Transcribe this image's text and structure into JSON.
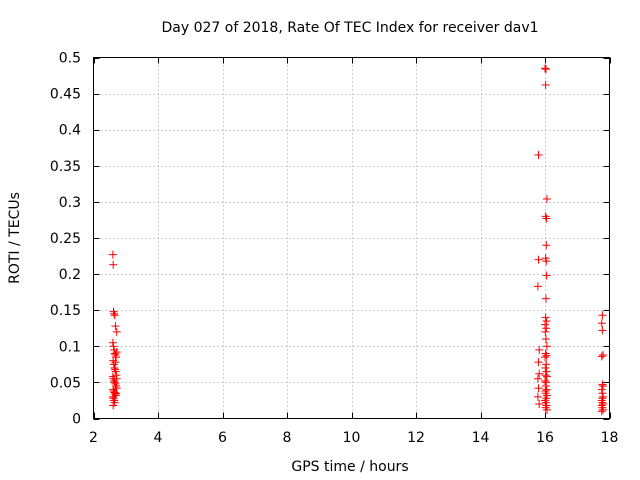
{
  "chart_data": {
    "type": "scatter",
    "title": "Day 027 of 2018, Rate Of TEC Index for receiver dav1",
    "xlabel": "GPS time / hours",
    "ylabel": "ROTI / TECUs",
    "xlim": [
      2,
      18
    ],
    "ylim": [
      0,
      0.5
    ],
    "xticks": [
      2,
      4,
      6,
      8,
      10,
      12,
      14,
      16,
      18
    ],
    "xtick_labels": [
      "2",
      "4",
      "6",
      "8",
      "10",
      "12",
      "14",
      "16",
      "18"
    ],
    "yticks": [
      0,
      0.05,
      0.1,
      0.15,
      0.2,
      0.25,
      0.3,
      0.35,
      0.4,
      0.45,
      0.5
    ],
    "ytick_labels": [
      "0",
      "0.05",
      "0.1",
      "0.15",
      "0.2",
      "0.25",
      "0.3",
      "0.35",
      "0.4",
      "0.45",
      "0.5"
    ],
    "grid": true,
    "marker": "plus",
    "color": "#ff0000",
    "series": [
      {
        "name": "dav1",
        "points": [
          [
            2.6,
            0.227
          ],
          [
            2.61,
            0.213
          ],
          [
            2.62,
            0.148
          ],
          [
            2.64,
            0.145
          ],
          [
            2.66,
            0.143
          ],
          [
            2.68,
            0.128
          ],
          [
            2.72,
            0.12
          ],
          [
            2.6,
            0.105
          ],
          [
            2.62,
            0.1
          ],
          [
            2.64,
            0.095
          ],
          [
            2.66,
            0.09
          ],
          [
            2.68,
            0.088
          ],
          [
            2.7,
            0.085
          ],
          [
            2.72,
            0.092
          ],
          [
            2.61,
            0.08
          ],
          [
            2.63,
            0.075
          ],
          [
            2.65,
            0.07
          ],
          [
            2.67,
            0.068
          ],
          [
            2.69,
            0.065
          ],
          [
            2.71,
            0.06
          ],
          [
            2.6,
            0.058
          ],
          [
            2.62,
            0.055
          ],
          [
            2.64,
            0.052
          ],
          [
            2.66,
            0.05
          ],
          [
            2.68,
            0.048
          ],
          [
            2.7,
            0.045
          ],
          [
            2.72,
            0.042
          ],
          [
            2.61,
            0.04
          ],
          [
            2.63,
            0.038
          ],
          [
            2.65,
            0.036
          ],
          [
            2.67,
            0.034
          ],
          [
            2.69,
            0.032
          ],
          [
            2.6,
            0.03
          ],
          [
            2.62,
            0.028
          ],
          [
            2.64,
            0.025
          ],
          [
            2.66,
            0.022
          ],
          [
            2.61,
            0.018
          ],
          [
            2.7,
            0.035
          ],
          [
            2.72,
            0.055
          ],
          [
            2.68,
            0.078
          ],
          [
            15.8,
            0.365
          ],
          [
            16.0,
            0.485
          ],
          [
            16.03,
            0.484
          ],
          [
            16.02,
            0.462
          ],
          [
            16.06,
            0.304
          ],
          [
            16.02,
            0.28
          ],
          [
            16.05,
            0.277
          ],
          [
            16.04,
            0.24
          ],
          [
            16.02,
            0.222
          ],
          [
            16.04,
            0.218
          ],
          [
            15.8,
            0.22
          ],
          [
            16.05,
            0.198
          ],
          [
            15.78,
            0.183
          ],
          [
            16.03,
            0.166
          ],
          [
            16.02,
            0.14
          ],
          [
            16.05,
            0.135
          ],
          [
            16.0,
            0.13
          ],
          [
            16.04,
            0.125
          ],
          [
            16.01,
            0.12
          ],
          [
            16.03,
            0.11
          ],
          [
            16.06,
            0.1
          ],
          [
            15.82,
            0.095
          ],
          [
            16.02,
            0.09
          ],
          [
            16.05,
            0.087
          ],
          [
            16.0,
            0.085
          ],
          [
            15.8,
            0.078
          ],
          [
            16.04,
            0.075
          ],
          [
            16.01,
            0.07
          ],
          [
            16.05,
            0.065
          ],
          [
            15.82,
            0.062
          ],
          [
            16.02,
            0.06
          ],
          [
            16.06,
            0.058
          ],
          [
            15.78,
            0.055
          ],
          [
            16.0,
            0.052
          ],
          [
            16.04,
            0.05
          ],
          [
            16.03,
            0.045
          ],
          [
            15.8,
            0.042
          ],
          [
            16.05,
            0.04
          ],
          [
            16.01,
            0.038
          ],
          [
            16.02,
            0.035
          ],
          [
            16.06,
            0.032
          ],
          [
            15.78,
            0.03
          ],
          [
            16.04,
            0.028
          ],
          [
            16.0,
            0.025
          ],
          [
            16.03,
            0.022
          ],
          [
            15.82,
            0.02
          ],
          [
            16.05,
            0.018
          ],
          [
            16.02,
            0.015
          ],
          [
            16.06,
            0.012
          ],
          [
            17.78,
            0.143
          ],
          [
            17.76,
            0.132
          ],
          [
            17.78,
            0.122
          ],
          [
            17.8,
            0.088
          ],
          [
            17.76,
            0.086
          ],
          [
            17.78,
            0.047
          ],
          [
            17.8,
            0.045
          ],
          [
            17.76,
            0.04
          ],
          [
            17.78,
            0.035
          ],
          [
            17.8,
            0.03
          ],
          [
            17.76,
            0.025
          ],
          [
            17.78,
            0.022
          ],
          [
            17.8,
            0.02
          ],
          [
            17.76,
            0.018
          ],
          [
            17.78,
            0.015
          ],
          [
            17.8,
            0.012
          ],
          [
            17.76,
            0.01
          ],
          [
            17.78,
            0.028
          ]
        ]
      }
    ]
  }
}
